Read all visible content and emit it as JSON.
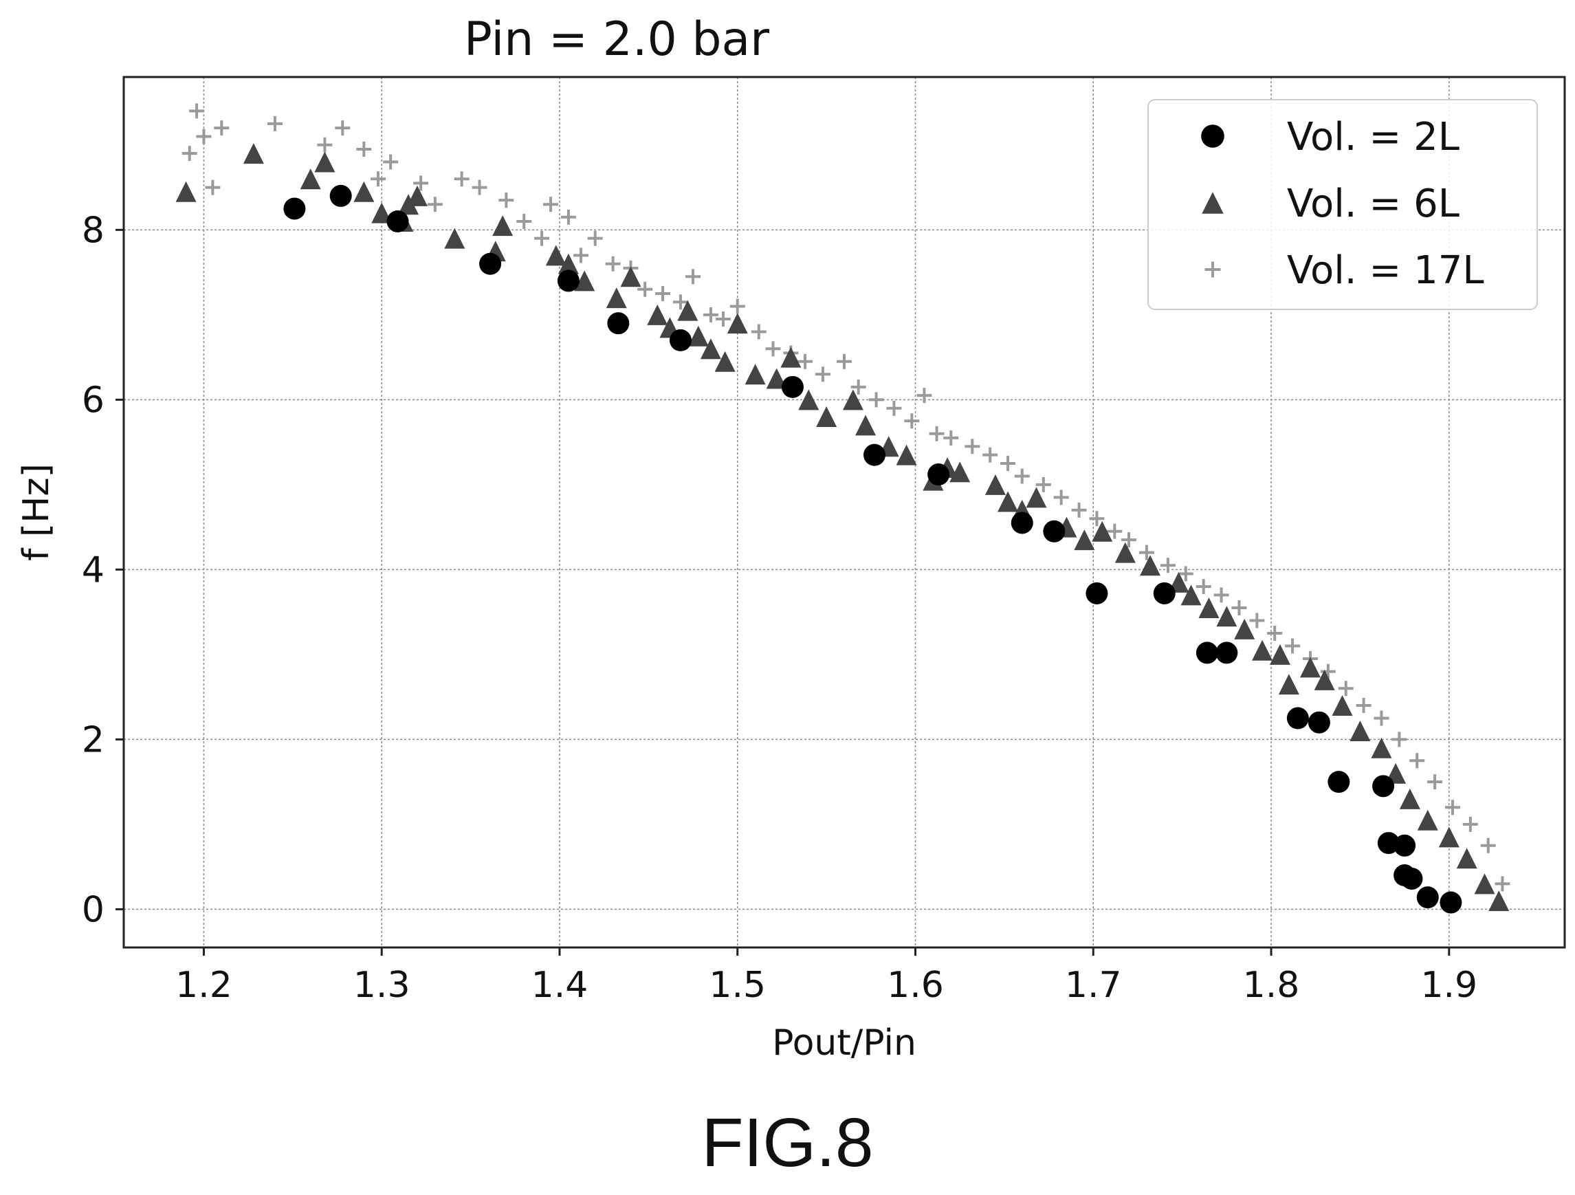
{
  "figure_label": "FIG.8",
  "chart_data": {
    "type": "scatter",
    "title": "Pin = 2.0 bar",
    "xlabel": "Pout/Pin",
    "ylabel": "f [Hz]",
    "xlim": [
      1.155,
      1.965
    ],
    "ylim": [
      -0.45,
      9.8
    ],
    "xticks": [
      1.2,
      1.3,
      1.4,
      1.5,
      1.6,
      1.7,
      1.8,
      1.9
    ],
    "yticks": [
      0,
      2,
      4,
      6,
      8
    ],
    "xtick_labels": [
      "1.2",
      "1.3",
      "1.4",
      "1.5",
      "1.6",
      "1.7",
      "1.8",
      "1.9"
    ],
    "ytick_labels": [
      "0",
      "2",
      "4",
      "6",
      "8"
    ],
    "grid": true,
    "legend_position": "top-right",
    "series": [
      {
        "name": "Vol. = 2L",
        "marker": "circle",
        "color": "#000000",
        "x": [
          1.251,
          1.277,
          1.309,
          1.361,
          1.405,
          1.433,
          1.468,
          1.531,
          1.577,
          1.613,
          1.66,
          1.678,
          1.702,
          1.74,
          1.764,
          1.775,
          1.815,
          1.827,
          1.838,
          1.863,
          1.866,
          1.875,
          1.875,
          1.879,
          1.888,
          1.901
        ],
        "y": [
          8.25,
          8.4,
          8.1,
          7.6,
          7.4,
          6.9,
          6.7,
          6.15,
          5.35,
          5.12,
          4.55,
          4.45,
          3.72,
          3.72,
          3.02,
          3.02,
          2.25,
          2.2,
          1.5,
          1.45,
          0.78,
          0.75,
          0.4,
          0.36,
          0.14,
          0.08
        ]
      },
      {
        "name": "Vol. = 6L",
        "marker": "triangle",
        "color": "#444444",
        "x": [
          1.19,
          1.228,
          1.26,
          1.268,
          1.29,
          1.3,
          1.312,
          1.315,
          1.32,
          1.341,
          1.364,
          1.368,
          1.398,
          1.405,
          1.414,
          1.432,
          1.44,
          1.455,
          1.462,
          1.472,
          1.478,
          1.485,
          1.493,
          1.5,
          1.51,
          1.522,
          1.53,
          1.54,
          1.55,
          1.565,
          1.572,
          1.585,
          1.595,
          1.61,
          1.618,
          1.625,
          1.645,
          1.652,
          1.66,
          1.668,
          1.685,
          1.695,
          1.705,
          1.718,
          1.732,
          1.748,
          1.755,
          1.765,
          1.775,
          1.785,
          1.795,
          1.805,
          1.81,
          1.822,
          1.83,
          1.84,
          1.85,
          1.862,
          1.87,
          1.878,
          1.888,
          1.9,
          1.91,
          1.92,
          1.928
        ],
        "y": [
          8.45,
          8.9,
          8.6,
          8.8,
          8.45,
          8.2,
          8.1,
          8.3,
          8.4,
          7.9,
          7.75,
          8.05,
          7.7,
          7.6,
          7.4,
          7.2,
          7.45,
          7.0,
          6.85,
          7.05,
          6.75,
          6.6,
          6.45,
          6.9,
          6.3,
          6.25,
          6.5,
          6.0,
          5.8,
          6.0,
          5.7,
          5.45,
          5.35,
          5.05,
          5.2,
          5.15,
          5.0,
          4.8,
          4.7,
          4.85,
          4.5,
          4.35,
          4.45,
          4.2,
          4.05,
          3.85,
          3.7,
          3.55,
          3.45,
          3.3,
          3.05,
          3.0,
          2.65,
          2.85,
          2.7,
          2.4,
          2.1,
          1.9,
          1.6,
          1.3,
          1.05,
          0.85,
          0.6,
          0.3,
          0.1
        ]
      },
      {
        "name": "Vol. = 17L",
        "marker": "plus",
        "color": "#9a9a9a",
        "x": [
          1.192,
          1.196,
          1.2,
          1.205,
          1.21,
          1.24,
          1.268,
          1.278,
          1.29,
          1.298,
          1.305,
          1.322,
          1.33,
          1.345,
          1.355,
          1.37,
          1.38,
          1.39,
          1.395,
          1.405,
          1.412,
          1.42,
          1.43,
          1.44,
          1.448,
          1.458,
          1.468,
          1.475,
          1.485,
          1.492,
          1.5,
          1.512,
          1.52,
          1.53,
          1.538,
          1.548,
          1.56,
          1.568,
          1.578,
          1.588,
          1.598,
          1.605,
          1.612,
          1.62,
          1.632,
          1.642,
          1.652,
          1.66,
          1.672,
          1.682,
          1.692,
          1.702,
          1.712,
          1.72,
          1.73,
          1.742,
          1.752,
          1.762,
          1.772,
          1.782,
          1.792,
          1.802,
          1.812,
          1.822,
          1.832,
          1.842,
          1.852,
          1.862,
          1.872,
          1.882,
          1.892,
          1.902,
          1.912,
          1.922,
          1.93
        ],
        "y": [
          8.9,
          9.4,
          9.1,
          8.5,
          9.2,
          9.25,
          9.0,
          9.2,
          8.95,
          8.6,
          8.8,
          8.55,
          8.3,
          8.6,
          8.5,
          8.35,
          8.1,
          7.9,
          8.3,
          8.15,
          7.7,
          7.9,
          7.6,
          7.55,
          7.3,
          7.25,
          7.15,
          7.45,
          7.0,
          6.95,
          7.1,
          6.8,
          6.6,
          6.55,
          6.45,
          6.3,
          6.45,
          6.15,
          6.0,
          5.9,
          5.75,
          6.05,
          5.6,
          5.55,
          5.45,
          5.35,
          5.25,
          5.1,
          5.0,
          4.85,
          4.7,
          4.6,
          4.45,
          4.35,
          4.2,
          4.05,
          3.95,
          3.8,
          3.7,
          3.55,
          3.4,
          3.25,
          3.1,
          2.95,
          2.8,
          2.6,
          2.4,
          2.25,
          2.0,
          1.75,
          1.5,
          1.2,
          1.0,
          0.75,
          0.3
        ]
      }
    ]
  }
}
